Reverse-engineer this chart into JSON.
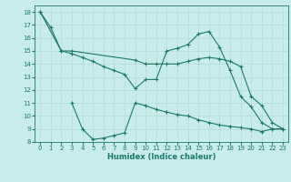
{
  "xlabel": "Humidex (Indice chaleur)",
  "bg_color": "#c8ece8",
  "grid_color": "#b8dcd8",
  "line_color": "#1a7a6a",
  "xlim": [
    -0.5,
    23.5
  ],
  "ylim": [
    8,
    18.5
  ],
  "yticks": [
    8,
    9,
    10,
    11,
    12,
    13,
    14,
    15,
    16,
    17,
    18
  ],
  "xticks": [
    0,
    1,
    2,
    3,
    4,
    5,
    6,
    7,
    8,
    9,
    10,
    11,
    12,
    13,
    14,
    15,
    16,
    17,
    18,
    19,
    20,
    21,
    22,
    23
  ],
  "line1_x": [
    0,
    1,
    2,
    3,
    4,
    5,
    6,
    7,
    8,
    9,
    10,
    11,
    12,
    13,
    14,
    15,
    16,
    17,
    18,
    19,
    20,
    21,
    22,
    23
  ],
  "line1_y": [
    18.0,
    16.8,
    15.0,
    14.8,
    14.5,
    14.2,
    13.8,
    13.5,
    13.2,
    12.1,
    12.8,
    12.8,
    15.0,
    15.2,
    15.5,
    16.3,
    16.5,
    15.3,
    13.5,
    11.5,
    10.7,
    9.5,
    9.0,
    9.0
  ],
  "line2_x": [
    0,
    2,
    3,
    9,
    10,
    11,
    12,
    13,
    14,
    15,
    16,
    17,
    18,
    19,
    20,
    21,
    22,
    23
  ],
  "line2_y": [
    18.0,
    15.0,
    15.0,
    14.3,
    14.0,
    14.0,
    14.0,
    14.0,
    14.2,
    14.4,
    14.5,
    14.4,
    14.2,
    13.8,
    11.5,
    10.8,
    9.5,
    9.0
  ],
  "line3_x": [
    3,
    4,
    5,
    6,
    7,
    8,
    9,
    10,
    11,
    12,
    13,
    14,
    15,
    16,
    17,
    18,
    19,
    20,
    21,
    22,
    23
  ],
  "line3_y": [
    11.0,
    9.0,
    8.2,
    8.3,
    8.5,
    8.7,
    11.0,
    10.8,
    10.5,
    10.3,
    10.1,
    10.0,
    9.7,
    9.5,
    9.3,
    9.2,
    9.1,
    9.0,
    8.8,
    9.0,
    9.0
  ]
}
